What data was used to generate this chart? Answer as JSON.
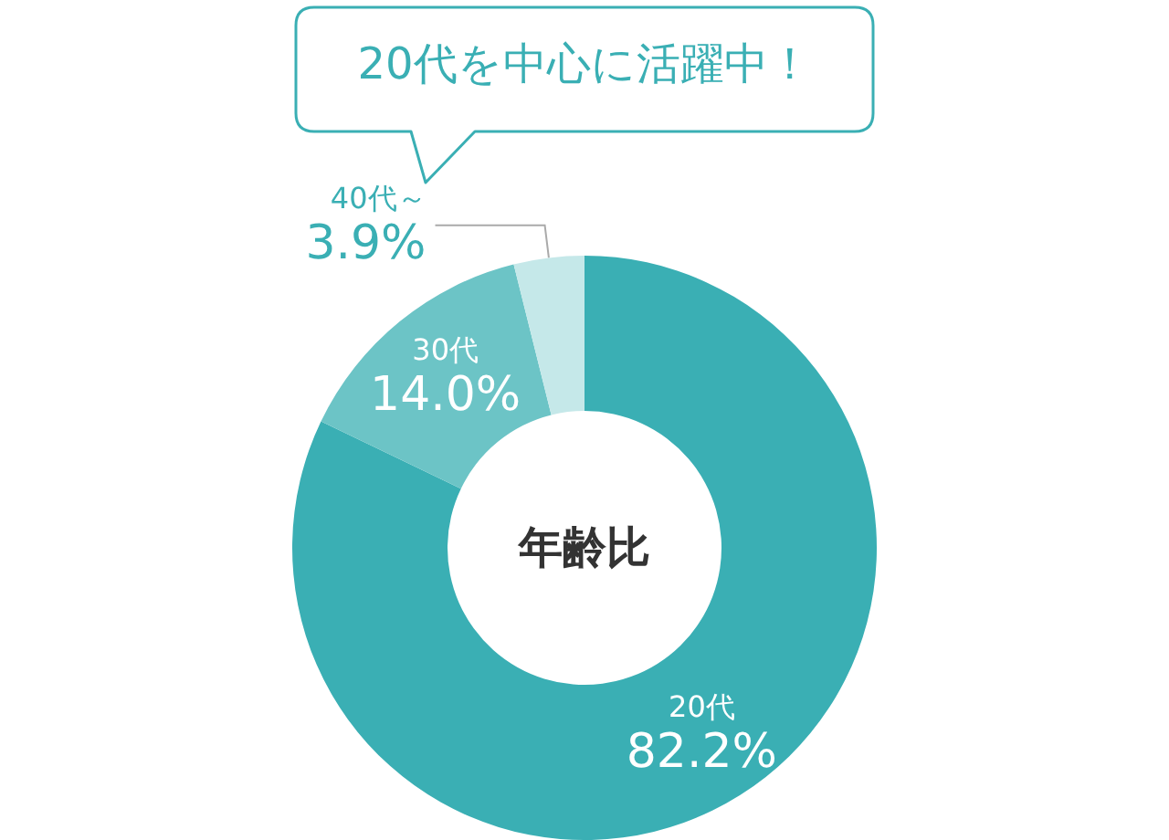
{
  "chart_data": {
    "type": "donut",
    "title": "年齢比",
    "annotations": [
      "20代を中心に活躍中！"
    ],
    "categories": [
      "20代",
      "30代",
      "40代～"
    ],
    "values": [
      82.2,
      14.0,
      3.9
    ],
    "colors": [
      "#3aafb4",
      "#6cc4c6",
      "#c5e8e9"
    ],
    "value_labels": [
      "82.2%",
      "14.0%",
      "3.9%"
    ]
  }
}
